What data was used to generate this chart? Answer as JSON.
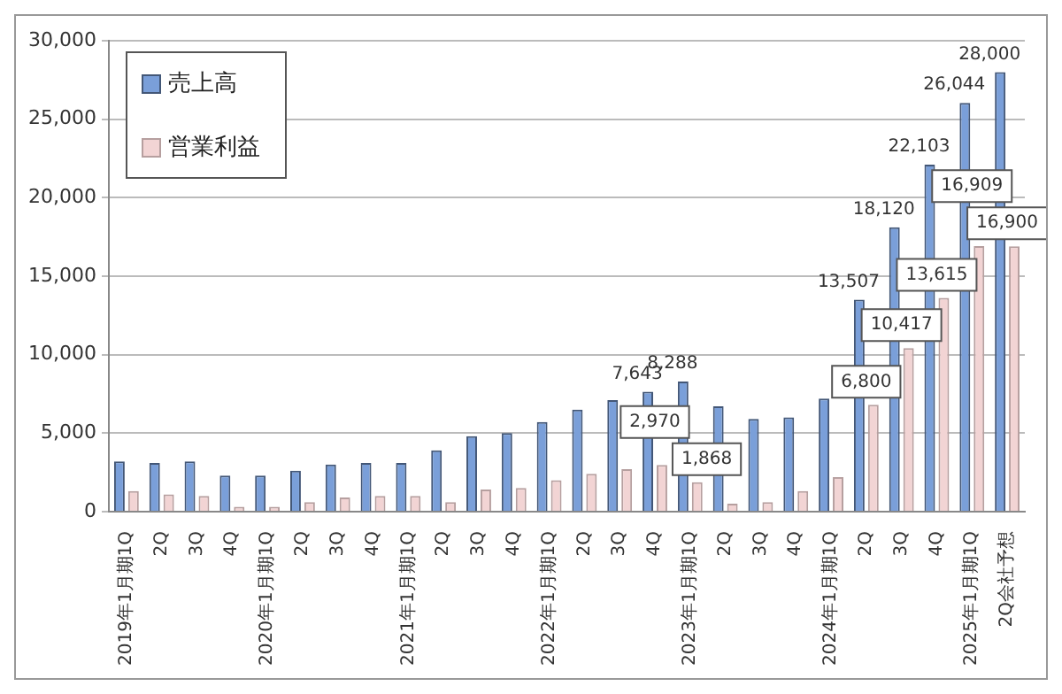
{
  "chart_data": {
    "type": "bar",
    "categories": [
      "2019年1月期1Q",
      "2Q",
      "3Q",
      "4Q",
      "2020年1月期1Q",
      "2Q",
      "3Q",
      "4Q",
      "2021年1月期1Q",
      "2Q",
      "3Q",
      "4Q",
      "2022年1月期1Q",
      "2Q",
      "3Q",
      "4Q",
      "2023年1月期1Q",
      "2Q",
      "3Q",
      "4Q",
      "2024年1月期1Q",
      "2Q",
      "3Q",
      "4Q",
      "2025年1月期1Q",
      "2Q会社予想"
    ],
    "series": [
      {
        "name": "売上高",
        "color": "#7a9fd9",
        "values": [
          3200,
          3100,
          3200,
          2300,
          2300,
          2600,
          3000,
          3100,
          3100,
          3900,
          4800,
          5000,
          5700,
          6500,
          7100,
          7643,
          8288,
          6700,
          5900,
          6000,
          7200,
          13507,
          18120,
          22103,
          26044,
          28000
        ],
        "value_labels": [
          null,
          null,
          null,
          null,
          null,
          null,
          null,
          null,
          null,
          null,
          null,
          null,
          null,
          null,
          null,
          "7,643",
          "8,288",
          null,
          null,
          null,
          null,
          "13,507",
          "18,120",
          "22,103",
          "26,044",
          "28,000"
        ]
      },
      {
        "name": "営業利益",
        "color": "#f2d4d4",
        "values": [
          1300,
          1100,
          1000,
          300,
          300,
          600,
          900,
          1000,
          1000,
          600,
          1400,
          1500,
          2000,
          2400,
          2700,
          2970,
          1868,
          500,
          600,
          1300,
          2200,
          6800,
          10417,
          13615,
          16909,
          16900
        ],
        "value_labels": [
          null,
          null,
          null,
          null,
          null,
          null,
          null,
          null,
          null,
          null,
          null,
          null,
          null,
          null,
          null,
          "2,970",
          "1,868",
          null,
          null,
          null,
          null,
          "6,800",
          "10,417",
          "13,615",
          "16,909",
          "16,900"
        ]
      }
    ],
    "ylim": [
      0,
      30000
    ],
    "yticks": [
      {
        "value": 0,
        "label": "0"
      },
      {
        "value": 5000,
        "label": "5,000"
      },
      {
        "value": 10000,
        "label": "10,000"
      },
      {
        "value": 15000,
        "label": "15,000"
      },
      {
        "value": 20000,
        "label": "20,000"
      },
      {
        "value": 25000,
        "label": "25,000"
      },
      {
        "value": 30000,
        "label": "30,000"
      }
    ],
    "grid": "y",
    "legend": "top left"
  }
}
